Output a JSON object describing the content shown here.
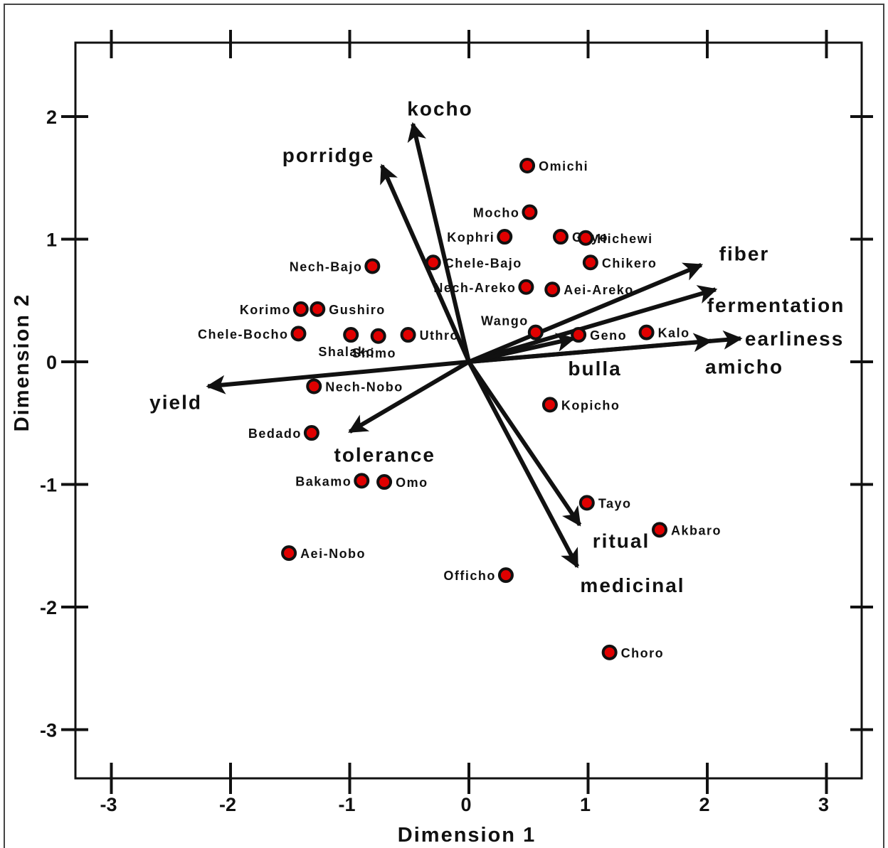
{
  "chart_data": {
    "type": "scatter",
    "subtype": "biplot",
    "xlabel": "Dimension 1",
    "ylabel": "Dimension 2",
    "xlim": [
      -3.3,
      3.3
    ],
    "ylim": [
      -3.4,
      2.6
    ],
    "xticks": [
      -3,
      -2,
      -1,
      0,
      1,
      2,
      3
    ],
    "yticks": [
      -3,
      -2,
      -1,
      0,
      1,
      2
    ],
    "xtick_labels": [
      "-3",
      "-2",
      "-1",
      "0",
      "1",
      "2",
      "3"
    ],
    "ytick_labels": [
      "-3",
      "-2",
      "-1",
      "0",
      "1",
      "2"
    ],
    "grid": false,
    "colors": {
      "point_fill": "#e00000",
      "point_stroke": "#111111",
      "arrow": "#111111",
      "frame": "#111111"
    },
    "points": [
      {
        "name": "Omichi",
        "x": 0.49,
        "y": 1.6
      },
      {
        "name": "Mocho",
        "x": 0.51,
        "y": 1.22
      },
      {
        "name": "Kophri",
        "x": 0.3,
        "y": 1.02
      },
      {
        "name": "Gayo",
        "x": 0.77,
        "y": 1.02
      },
      {
        "name": "Hichewi",
        "x": 0.98,
        "y": 1.01
      },
      {
        "name": "Chikero",
        "x": 1.02,
        "y": 0.81
      },
      {
        "name": "Chele-Bajo",
        "x": -0.3,
        "y": 0.81
      },
      {
        "name": "Nech-Bajo",
        "x": -0.81,
        "y": 0.78
      },
      {
        "name": "Nech-Areko",
        "x": 0.48,
        "y": 0.61
      },
      {
        "name": "Aei-Areko",
        "x": 0.7,
        "y": 0.59
      },
      {
        "name": "Korimo",
        "x": -1.41,
        "y": 0.43
      },
      {
        "name": "Gushiro",
        "x": -1.27,
        "y": 0.43
      },
      {
        "name": "Chele-Bocho",
        "x": -1.43,
        "y": 0.23
      },
      {
        "name": "Shalako",
        "x": -0.99,
        "y": 0.22
      },
      {
        "name": "Shimo",
        "x": -0.76,
        "y": 0.21
      },
      {
        "name": "Uthro",
        "x": -0.51,
        "y": 0.22
      },
      {
        "name": "Wango",
        "x": 0.56,
        "y": 0.24
      },
      {
        "name": "Geno",
        "x": 0.92,
        "y": 0.22
      },
      {
        "name": "Kalo",
        "x": 1.49,
        "y": 0.24
      },
      {
        "name": "Nech-Nobo",
        "x": -1.3,
        "y": -0.2
      },
      {
        "name": "Kopicho",
        "x": 0.68,
        "y": -0.35
      },
      {
        "name": "Bedado",
        "x": -1.32,
        "y": -0.58
      },
      {
        "name": "Bakamo",
        "x": -0.9,
        "y": -0.97
      },
      {
        "name": "Omo",
        "x": -0.71,
        "y": -0.98
      },
      {
        "name": "Tayo",
        "x": 0.99,
        "y": -1.15
      },
      {
        "name": "Akbaro",
        "x": 1.6,
        "y": -1.37
      },
      {
        "name": "Aei-Nobo",
        "x": -1.51,
        "y": -1.56
      },
      {
        "name": "Officho",
        "x": 0.31,
        "y": -1.74
      },
      {
        "name": "Choro",
        "x": 1.18,
        "y": -2.37
      }
    ],
    "vectors": [
      {
        "name": "kocho",
        "x": -0.47,
        "y": 1.94
      },
      {
        "name": "porridge",
        "x": -0.73,
        "y": 1.6
      },
      {
        "name": "fiber",
        "x": 1.95,
        "y": 0.79
      },
      {
        "name": "fermentation",
        "x": 2.07,
        "y": 0.59
      },
      {
        "name": "earliness",
        "x": 2.28,
        "y": 0.19
      },
      {
        "name": "amicho",
        "x": 2.03,
        "y": 0.17
      },
      {
        "name": "bulla",
        "x": 0.88,
        "y": 0.19
      },
      {
        "name": "yield",
        "x": -2.19,
        "y": -0.2
      },
      {
        "name": "tolerance",
        "x": -1.0,
        "y": -0.57
      },
      {
        "name": "ritual",
        "x": 0.93,
        "y": -1.33
      },
      {
        "name": "medicinal",
        "x": 0.91,
        "y": -1.67
      }
    ]
  }
}
